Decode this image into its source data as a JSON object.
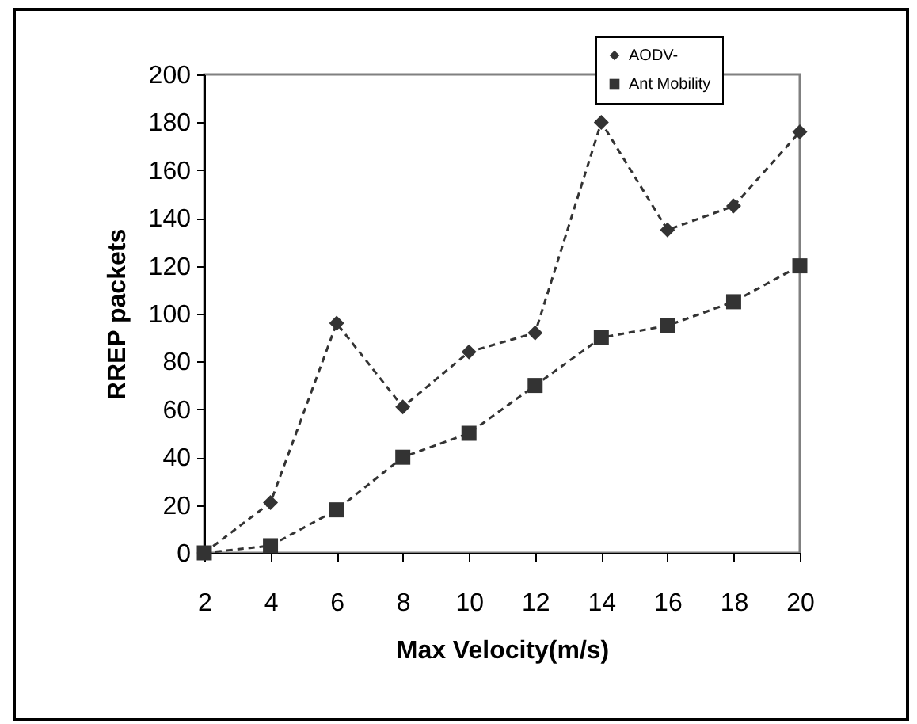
{
  "chart_data": {
    "type": "line",
    "xlabel": "Max Velocity(m/s)",
    "ylabel": "RREP packets",
    "x": [
      2,
      4,
      6,
      8,
      10,
      12,
      14,
      16,
      18,
      20
    ],
    "series": [
      {
        "name": "AODV-",
        "color": "#333333",
        "marker": "diamond",
        "values": [
          0,
          21,
          96,
          61,
          84,
          92,
          180,
          135,
          145,
          176
        ]
      },
      {
        "name": "Ant Mobility",
        "color": "#333333",
        "marker": "square",
        "values": [
          0,
          3,
          18,
          40,
          50,
          70,
          90,
          95,
          105,
          120
        ]
      }
    ],
    "xlim": [
      2,
      20
    ],
    "xticks": [
      2,
      4,
      6,
      8,
      10,
      12,
      14,
      16,
      18,
      20
    ],
    "ylim": [
      0,
      200
    ],
    "yticks": [
      0,
      20,
      40,
      60,
      80,
      100,
      120,
      140,
      160,
      180,
      200
    ],
    "grid": false,
    "legend": "top right",
    "line_style": "dashed"
  }
}
